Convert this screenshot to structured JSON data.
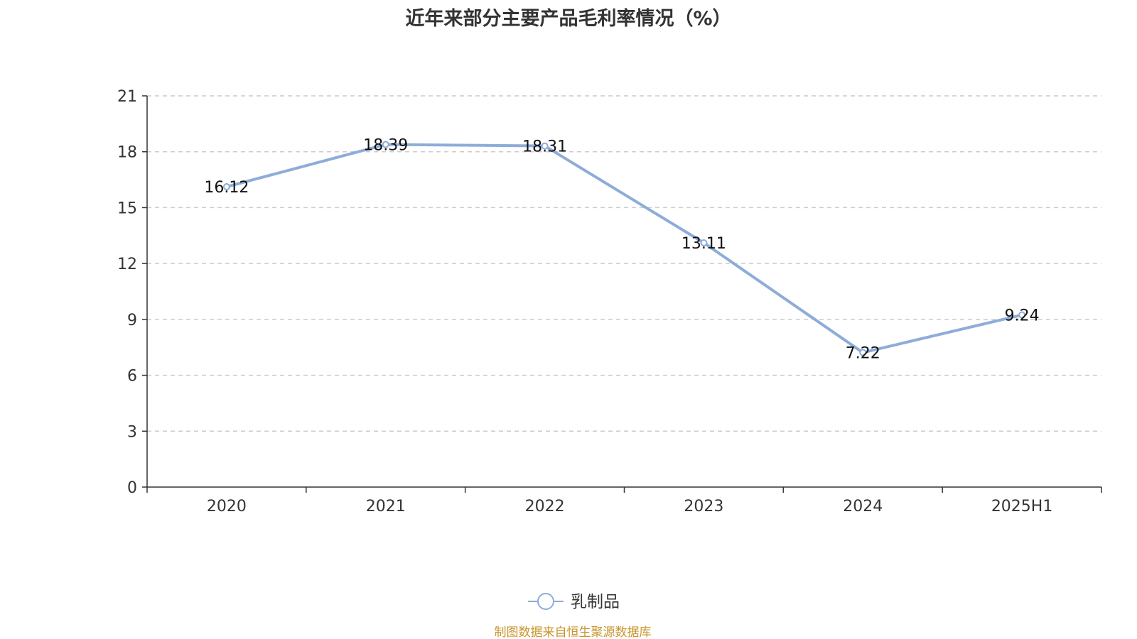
{
  "chart_data": {
    "type": "line",
    "title": "近年来部分主要产品毛利率情况（%）",
    "categories": [
      "2020",
      "2021",
      "2022",
      "2023",
      "2024",
      "2025H1"
    ],
    "series": [
      {
        "name": "乳制品",
        "values": [
          16.12,
          18.39,
          18.31,
          13.11,
          7.22,
          9.24
        ],
        "data_labels": [
          "16.12",
          "18.39",
          "18.31",
          "13.11",
          "7.22",
          "9.24"
        ]
      }
    ],
    "y_ticks": [
      "0",
      "3",
      "6",
      "9",
      "12",
      "15",
      "18",
      "21"
    ],
    "ylim": [
      0,
      21
    ],
    "y_step": 3,
    "grid": "horizontal dashed",
    "legend_position": "bottom-center",
    "xlabel": "",
    "ylabel": ""
  },
  "colors": {
    "series_line": "#8eacd9",
    "grid": "#cccccc",
    "axis": "#333333",
    "source_text": "#c8962e"
  },
  "footer": {
    "source": "制图数据来自恒生聚源数据库"
  }
}
